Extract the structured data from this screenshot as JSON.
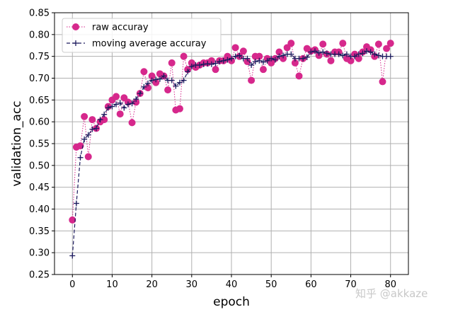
{
  "watermark": "知乎 @akkaze",
  "chart_data": {
    "type": "line",
    "xlabel": "epoch",
    "ylabel": "validation_acc",
    "xlim": [
      -4.5,
      84.5
    ],
    "ylim": [
      0.25,
      0.85
    ],
    "xticks": [
      0,
      10,
      20,
      30,
      40,
      50,
      60,
      70,
      80
    ],
    "yticks": [
      0.25,
      0.3,
      0.35,
      0.4,
      0.45,
      0.5,
      0.55,
      0.6,
      0.65,
      0.7,
      0.75,
      0.8,
      0.85
    ],
    "grid": true,
    "legend_position": "top-left",
    "colors": {
      "raw": "#d6288c",
      "smooth": "#1c1a5e",
      "grid": "#b0b0b0"
    },
    "x": [
      0,
      1,
      2,
      3,
      4,
      5,
      6,
      7,
      8,
      9,
      10,
      11,
      12,
      13,
      14,
      15,
      16,
      17,
      18,
      19,
      20,
      21,
      22,
      23,
      24,
      25,
      26,
      27,
      28,
      29,
      30,
      31,
      32,
      33,
      34,
      35,
      36,
      37,
      38,
      39,
      40,
      41,
      42,
      43,
      44,
      45,
      46,
      47,
      48,
      49,
      50,
      51,
      52,
      53,
      54,
      55,
      56,
      57,
      58,
      59,
      60,
      61,
      62,
      63,
      64,
      65,
      66,
      67,
      68,
      69,
      70,
      71,
      72,
      73,
      74,
      75,
      76,
      77,
      78,
      79,
      80
    ],
    "series": [
      {
        "name": "raw accuray",
        "values": [
          0.375,
          0.542,
          0.545,
          0.612,
          0.52,
          0.605,
          0.585,
          0.6,
          0.605,
          0.635,
          0.65,
          0.658,
          0.618,
          0.655,
          0.645,
          0.598,
          0.645,
          0.665,
          0.715,
          0.678,
          0.705,
          0.69,
          0.71,
          0.705,
          0.673,
          0.735,
          0.627,
          0.63,
          0.75,
          0.72,
          0.735,
          0.725,
          0.73,
          0.735,
          0.735,
          0.74,
          0.72,
          0.74,
          0.74,
          0.75,
          0.74,
          0.77,
          0.75,
          0.762,
          0.738,
          0.695,
          0.75,
          0.75,
          0.72,
          0.745,
          0.735,
          0.745,
          0.76,
          0.745,
          0.77,
          0.78,
          0.735,
          0.705,
          0.745,
          0.768,
          0.762,
          0.765,
          0.752,
          0.778,
          0.755,
          0.74,
          0.76,
          0.76,
          0.78,
          0.745,
          0.74,
          0.755,
          0.745,
          0.76,
          0.772,
          0.765,
          0.75,
          0.778,
          0.692,
          0.768,
          0.78
        ]
      },
      {
        "name": "moving average accuray",
        "values": [
          0.293,
          0.413,
          0.518,
          0.56,
          0.57,
          0.583,
          0.585,
          0.605,
          0.617,
          0.632,
          0.635,
          0.64,
          0.643,
          0.632,
          0.64,
          0.642,
          0.652,
          0.665,
          0.68,
          0.688,
          0.695,
          0.697,
          0.698,
          0.705,
          0.695,
          0.695,
          0.682,
          0.69,
          0.695,
          0.715,
          0.727,
          0.73,
          0.73,
          0.732,
          0.733,
          0.732,
          0.734,
          0.738,
          0.74,
          0.742,
          0.745,
          0.75,
          0.752,
          0.745,
          0.745,
          0.73,
          0.738,
          0.74,
          0.737,
          0.74,
          0.745,
          0.742,
          0.75,
          0.752,
          0.755,
          0.755,
          0.745,
          0.745,
          0.745,
          0.748,
          0.76,
          0.762,
          0.758,
          0.76,
          0.757,
          0.755,
          0.755,
          0.755,
          0.752,
          0.755,
          0.75,
          0.75,
          0.755,
          0.757,
          0.762,
          0.76,
          0.755,
          0.752,
          0.75,
          0.75,
          0.75
        ]
      }
    ]
  }
}
